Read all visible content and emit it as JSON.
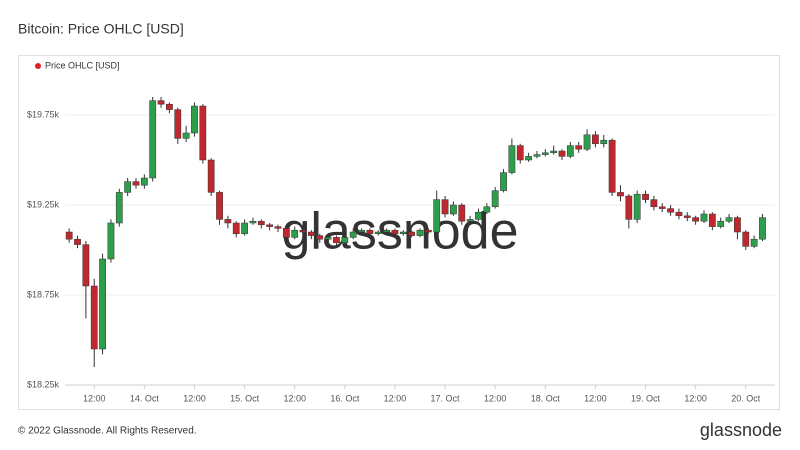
{
  "chart_data": {
    "type": "candlestick",
    "title": "Bitcoin: Price OHLC [USD]",
    "x": [
      "13. Oct 06:00",
      "13. Oct 08:00",
      "13. Oct 10:00",
      "13. Oct 12:00",
      "13. Oct 14:00",
      "13. Oct 16:00",
      "13. Oct 18:00",
      "13. Oct 20:00",
      "13. Oct 22:00",
      "14. Oct 00:00",
      "14. Oct 02:00",
      "14. Oct 04:00",
      "14. Oct 06:00",
      "14. Oct 08:00",
      "14. Oct 10:00",
      "14. Oct 12:00",
      "14. Oct 14:00",
      "14. Oct 16:00",
      "14. Oct 18:00",
      "14. Oct 20:00",
      "14. Oct 22:00",
      "15. Oct 00:00",
      "15. Oct 02:00",
      "15. Oct 04:00",
      "15. Oct 06:00",
      "15. Oct 08:00",
      "15. Oct 10:00",
      "15. Oct 12:00",
      "15. Oct 14:00",
      "15. Oct 16:00",
      "15. Oct 18:00",
      "15. Oct 20:00",
      "15. Oct 22:00",
      "16. Oct 00:00",
      "16. Oct 02:00",
      "16. Oct 04:00",
      "16. Oct 06:00",
      "16. Oct 08:00",
      "16. Oct 10:00",
      "16. Oct 12:00",
      "16. Oct 14:00",
      "16. Oct 16:00",
      "16. Oct 18:00",
      "16. Oct 20:00",
      "16. Oct 22:00",
      "17. Oct 00:00",
      "17. Oct 02:00",
      "17. Oct 04:00",
      "17. Oct 06:00",
      "17. Oct 08:00",
      "17. Oct 10:00",
      "17. Oct 12:00",
      "17. Oct 14:00",
      "17. Oct 16:00",
      "17. Oct 18:00",
      "17. Oct 20:00",
      "17. Oct 22:00",
      "18. Oct 00:00",
      "18. Oct 02:00",
      "18. Oct 04:00",
      "18. Oct 06:00",
      "18. Oct 08:00",
      "18. Oct 10:00",
      "18. Oct 12:00",
      "18. Oct 14:00",
      "18. Oct 16:00",
      "18. Oct 18:00",
      "18. Oct 20:00",
      "18. Oct 22:00",
      "19. Oct 00:00",
      "19. Oct 02:00",
      "19. Oct 04:00",
      "19. Oct 06:00",
      "19. Oct 08:00",
      "19. Oct 10:00",
      "19. Oct 12:00",
      "19. Oct 14:00",
      "19. Oct 16:00",
      "19. Oct 18:00",
      "19. Oct 20:00",
      "19. Oct 22:00",
      "20. Oct 00:00",
      "20. Oct 02:00",
      "20. Oct 04:00"
    ],
    "series": [
      {
        "name": "Price OHLC [USD]",
        "color": "#e3201b",
        "up_color": "#2f9e4a",
        "down_color": "#c0282d",
        "open": [
          19100,
          19060,
          19030,
          18800,
          18450,
          18950,
          19150,
          19320,
          19380,
          19360,
          19400,
          19830,
          19810,
          19780,
          19620,
          19650,
          19800,
          19500,
          19320,
          19170,
          19150,
          19090,
          19150,
          19160,
          19140,
          19130,
          19120,
          19070,
          19110,
          19100,
          19080,
          19060,
          19070,
          19040,
          19070,
          19100,
          19110,
          19090,
          19100,
          19110,
          19090,
          19100,
          19080,
          19110,
          19100,
          19280,
          19200,
          19250,
          19160,
          19170,
          19210,
          19240,
          19330,
          19430,
          19580,
          19500,
          19520,
          19530,
          19540,
          19550,
          19520,
          19580,
          19560,
          19640,
          19590,
          19610,
          19320,
          19300,
          19170,
          19310,
          19280,
          19240,
          19230,
          19210,
          19190,
          19180,
          19160,
          19200,
          19130,
          19160,
          19180,
          19100,
          19020,
          19060
        ],
        "high": [
          19120,
          19080,
          19050,
          18840,
          18980,
          19170,
          19340,
          19400,
          19400,
          19420,
          19850,
          19850,
          19820,
          19790,
          19690,
          19820,
          19810,
          19510,
          19330,
          19190,
          19160,
          19170,
          19180,
          19170,
          19150,
          19140,
          19130,
          19130,
          19120,
          19110,
          19090,
          19090,
          19080,
          19090,
          19120,
          19120,
          19120,
          19110,
          19120,
          19120,
          19110,
          19110,
          19120,
          19120,
          19330,
          19300,
          19270,
          19260,
          19190,
          19230,
          19260,
          19350,
          19450,
          19620,
          19590,
          19540,
          19550,
          19560,
          19580,
          19560,
          19600,
          19600,
          19670,
          19660,
          19640,
          19620,
          19360,
          19310,
          19330,
          19330,
          19300,
          19260,
          19250,
          19230,
          19210,
          19190,
          19220,
          19210,
          19180,
          19200,
          19190,
          19110,
          19080,
          19200
        ],
        "low": [
          19040,
          19010,
          18620,
          18350,
          18420,
          18930,
          19130,
          19300,
          19340,
          19340,
          19380,
          19790,
          19760,
          19590,
          19600,
          19630,
          19480,
          19300,
          19140,
          19120,
          19070,
          19080,
          19140,
          19120,
          19110,
          19100,
          19050,
          19060,
          19080,
          19060,
          19040,
          19040,
          19020,
          19030,
          19060,
          19090,
          19080,
          19080,
          19090,
          19080,
          19080,
          19070,
          19070,
          19090,
          19090,
          19180,
          19190,
          19140,
          19150,
          19160,
          19200,
          19230,
          19320,
          19420,
          19480,
          19490,
          19510,
          19520,
          19530,
          19500,
          19510,
          19540,
          19550,
          19570,
          19570,
          19300,
          19270,
          19120,
          19150,
          19260,
          19220,
          19210,
          19190,
          19170,
          19160,
          19140,
          19150,
          19110,
          19120,
          19150,
          19060,
          19000,
          19010,
          19050
        ],
        "close": [
          19060,
          19030,
          18800,
          18450,
          18950,
          19150,
          19320,
          19380,
          19360,
          19400,
          19830,
          19810,
          19780,
          19620,
          19650,
          19800,
          19500,
          19320,
          19170,
          19150,
          19090,
          19150,
          19160,
          19140,
          19130,
          19120,
          19070,
          19110,
          19100,
          19080,
          19060,
          19070,
          19040,
          19070,
          19100,
          19110,
          19090,
          19100,
          19110,
          19090,
          19100,
          19080,
          19110,
          19100,
          19280,
          19200,
          19250,
          19160,
          19170,
          19210,
          19240,
          19330,
          19430,
          19580,
          19500,
          19520,
          19530,
          19540,
          19550,
          19520,
          19580,
          19560,
          19640,
          19590,
          19610,
          19320,
          19300,
          19170,
          19310,
          19280,
          19240,
          19230,
          19210,
          19190,
          19180,
          19160,
          19200,
          19130,
          19160,
          19180,
          19100,
          19020,
          19060,
          19180
        ]
      }
    ],
    "xlim": [
      "13. Oct 05:00",
      "20. Oct 07:00"
    ],
    "xticks": [
      {
        "value": "13. Oct 12:00",
        "label": "12:00"
      },
      {
        "value": "14. Oct 00:00",
        "label": "14. Oct"
      },
      {
        "value": "14. Oct 12:00",
        "label": "12:00"
      },
      {
        "value": "15. Oct 00:00",
        "label": "15. Oct"
      },
      {
        "value": "15. Oct 12:00",
        "label": "12:00"
      },
      {
        "value": "16. Oct 00:00",
        "label": "16. Oct"
      },
      {
        "value": "16. Oct 12:00",
        "label": "12:00"
      },
      {
        "value": "17. Oct 00:00",
        "label": "17. Oct"
      },
      {
        "value": "17. Oct 12:00",
        "label": "12:00"
      },
      {
        "value": "18. Oct 00:00",
        "label": "18. Oct"
      },
      {
        "value": "18. Oct 12:00",
        "label": "12:00"
      },
      {
        "value": "19. Oct 00:00",
        "label": "19. Oct"
      },
      {
        "value": "19. Oct 12:00",
        "label": "12:00"
      },
      {
        "value": "20. Oct 00:00",
        "label": "20. Oct"
      }
    ],
    "ylim": [
      18250,
      20000
    ],
    "yticks": [
      {
        "value": 18250,
        "label": "$18.25k"
      },
      {
        "value": 18750,
        "label": "$18.75k"
      },
      {
        "value": 19250,
        "label": "$19.25k"
      },
      {
        "value": 19750,
        "label": "$19.75k"
      }
    ],
    "grid": true
  },
  "watermark": "glassnode",
  "footer": {
    "copyright": "© 2022 Glassnode. All Rights Reserved.",
    "logo": "glassnode"
  }
}
